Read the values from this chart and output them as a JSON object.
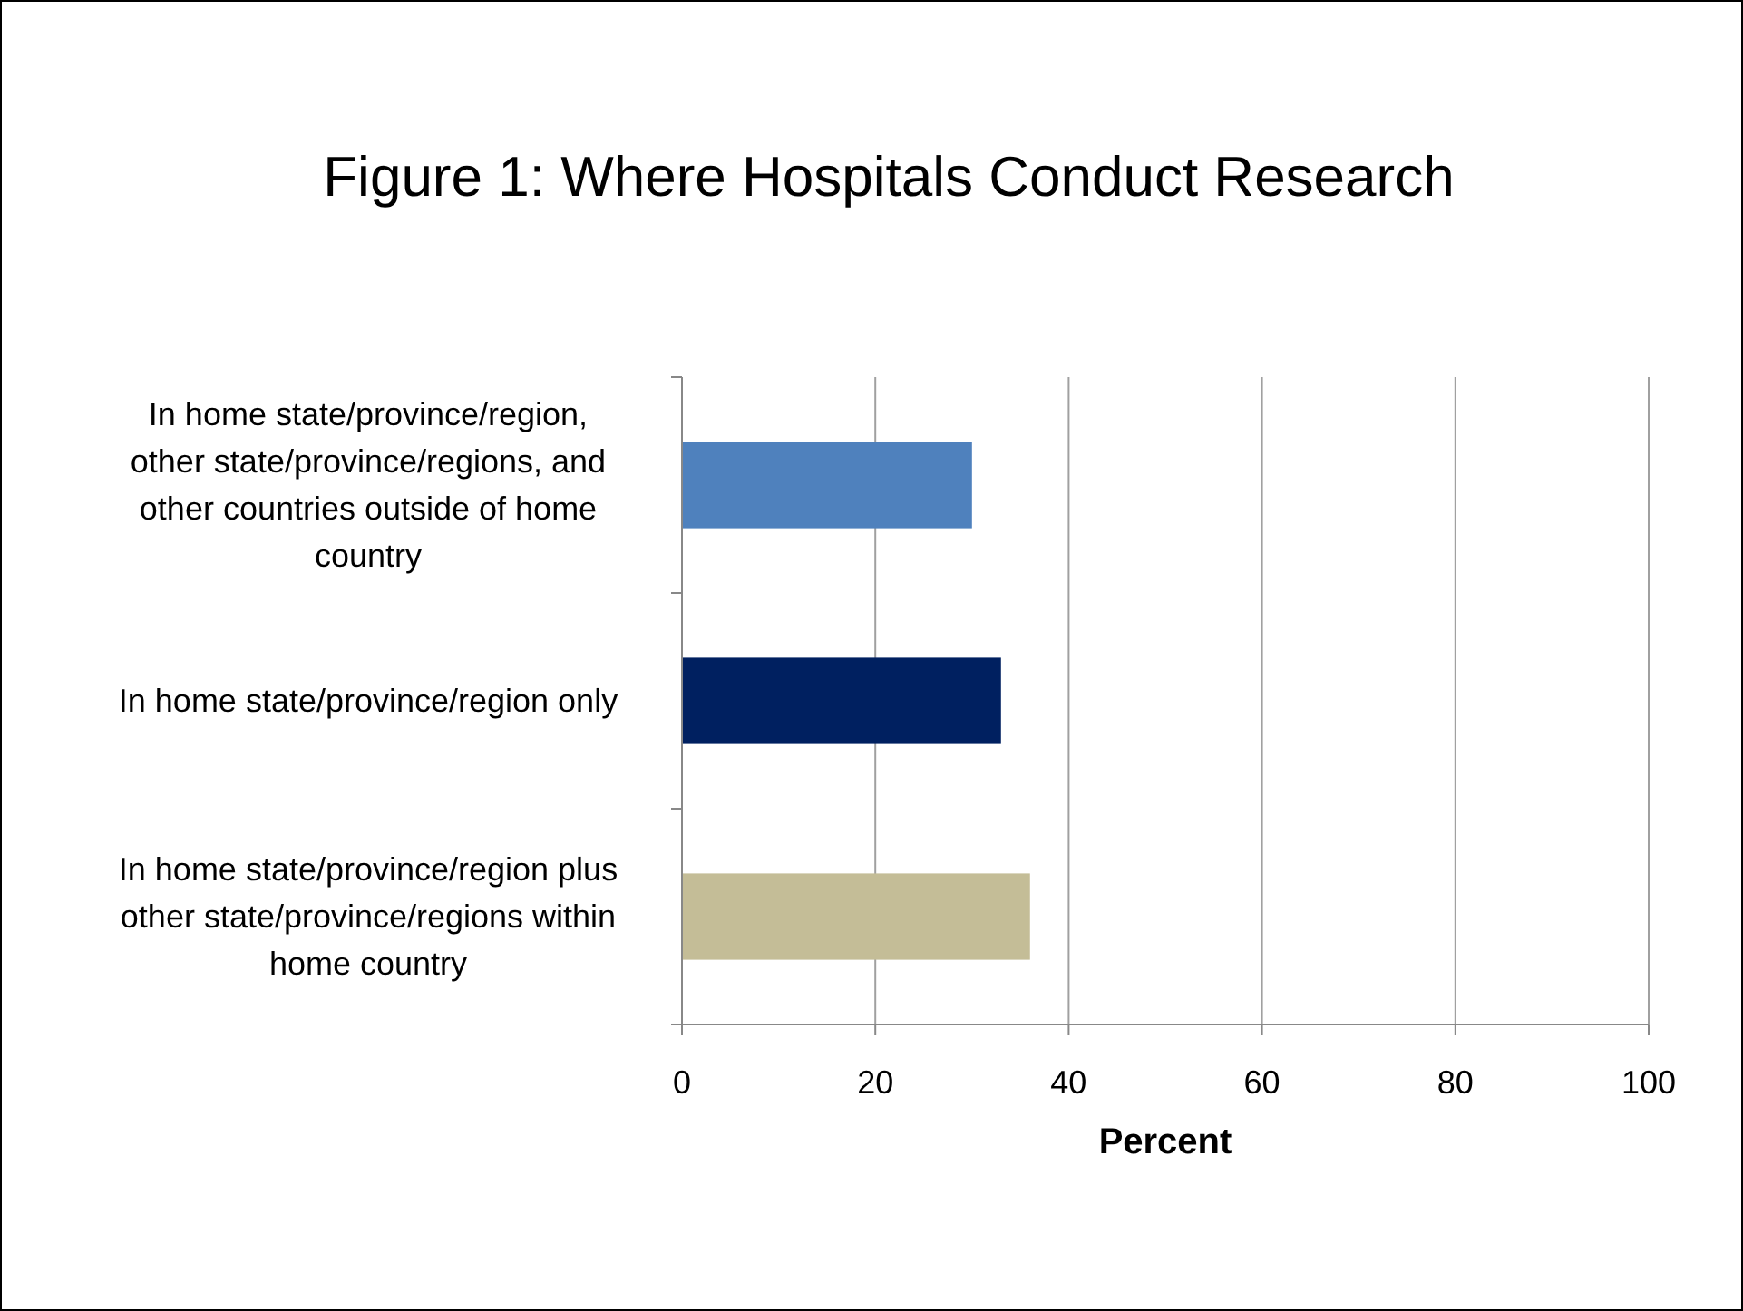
{
  "chart_data": {
    "type": "bar",
    "orientation": "horizontal",
    "title": "Figure 1: Where Hospitals Conduct Research",
    "xlabel": "Percent",
    "categories": [
      "In home state/province/region, other state/province/regions, and other countries outside of home country",
      "In home state/province/region only",
      "In home state/province/region plus other state/province/regions within home country"
    ],
    "values": [
      30,
      33,
      36
    ],
    "colors": [
      "#4f81bd",
      "#002060",
      "#c4bd97"
    ],
    "xlim": [
      0,
      100
    ],
    "xticks": [
      0,
      20,
      40,
      60,
      80,
      100
    ],
    "grid": "x"
  }
}
